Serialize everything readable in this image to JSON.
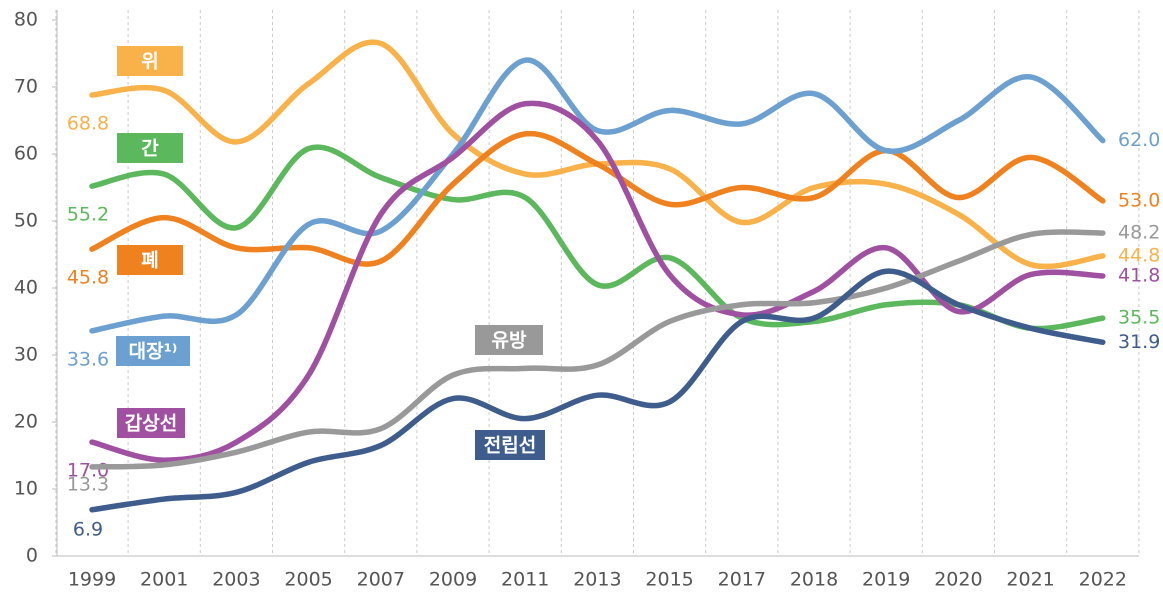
{
  "chart_data": {
    "type": "line",
    "categories": [
      "1999",
      "2001",
      "2003",
      "2005",
      "2007",
      "2009",
      "2011",
      "2013",
      "2015",
      "2017",
      "2018",
      "2019",
      "2020",
      "2021",
      "2022"
    ],
    "ylim": [
      0,
      80
    ],
    "yticks": [
      0,
      10,
      20,
      30,
      40,
      50,
      60,
      70,
      80
    ],
    "series": [
      {
        "name": "위",
        "color": "#f9b24a",
        "values": [
          68.8,
          69.5,
          61.8,
          70.5,
          76.5,
          63,
          57,
          58.5,
          57.8,
          49.8,
          55,
          55.5,
          51,
          43.5,
          44.8
        ],
        "value_labels": [
          "68.8",
          null,
          null,
          null,
          null,
          null,
          null,
          null,
          null,
          null,
          null,
          null,
          null,
          null,
          "44.8"
        ]
      },
      {
        "name": "간",
        "color": "#5cb85c",
        "values": [
          55.2,
          57,
          49,
          60.8,
          56.5,
          53.2,
          53.5,
          40.5,
          44.5,
          35.5,
          35,
          37.5,
          37.5,
          34,
          35.5
        ],
        "value_labels": [
          "55.2",
          null,
          null,
          null,
          null,
          null,
          null,
          null,
          null,
          null,
          null,
          null,
          null,
          null,
          "35.5"
        ]
      },
      {
        "name": "폐",
        "color": "#f0811f",
        "values": [
          45.8,
          50.5,
          46,
          46,
          44,
          55.5,
          63,
          58.5,
          52.5,
          55,
          53.5,
          60.5,
          53.5,
          59.5,
          53
        ],
        "value_labels": [
          "45.8",
          null,
          null,
          null,
          null,
          null,
          null,
          null,
          null,
          null,
          null,
          null,
          null,
          null,
          "53.0"
        ]
      },
      {
        "name": "대장¹⁾",
        "color": "#6ca0d0",
        "values": [
          33.6,
          35.8,
          36,
          49.5,
          48.5,
          60,
          74,
          63.5,
          66.5,
          64.5,
          69,
          60.5,
          65,
          71.5,
          62
        ],
        "value_labels": [
          "33.6",
          null,
          null,
          null,
          null,
          null,
          null,
          null,
          null,
          null,
          null,
          null,
          null,
          null,
          "62.0"
        ]
      },
      {
        "name": "갑상선",
        "color": "#a050a0",
        "values": [
          17,
          14.3,
          17,
          27,
          51,
          59.5,
          67.5,
          62,
          42,
          36,
          39.5,
          46,
          36.5,
          42,
          41.8
        ],
        "value_labels": [
          "17.0",
          null,
          null,
          null,
          null,
          null,
          null,
          null,
          null,
          null,
          null,
          null,
          null,
          null,
          "41.8"
        ]
      },
      {
        "name": "유방",
        "color": "#999999",
        "values": [
          13.3,
          13.6,
          15.5,
          18.5,
          19,
          27,
          28,
          28.5,
          35,
          37.5,
          37.8,
          40,
          44,
          48,
          48.2
        ],
        "value_labels": [
          "13.3",
          null,
          null,
          null,
          null,
          null,
          null,
          null,
          null,
          null,
          null,
          null,
          null,
          null,
          "48.2"
        ]
      },
      {
        "name": "전립선",
        "color": "#3e5d8c",
        "values": [
          6.9,
          8.5,
          9.5,
          14,
          16.5,
          23.5,
          20.5,
          24,
          23,
          35,
          35.5,
          42.5,
          37.5,
          34,
          31.9
        ],
        "value_labels": [
          "6.9",
          null,
          null,
          null,
          null,
          null,
          null,
          null,
          null,
          null,
          null,
          null,
          null,
          null,
          "31.9"
        ]
      }
    ]
  }
}
